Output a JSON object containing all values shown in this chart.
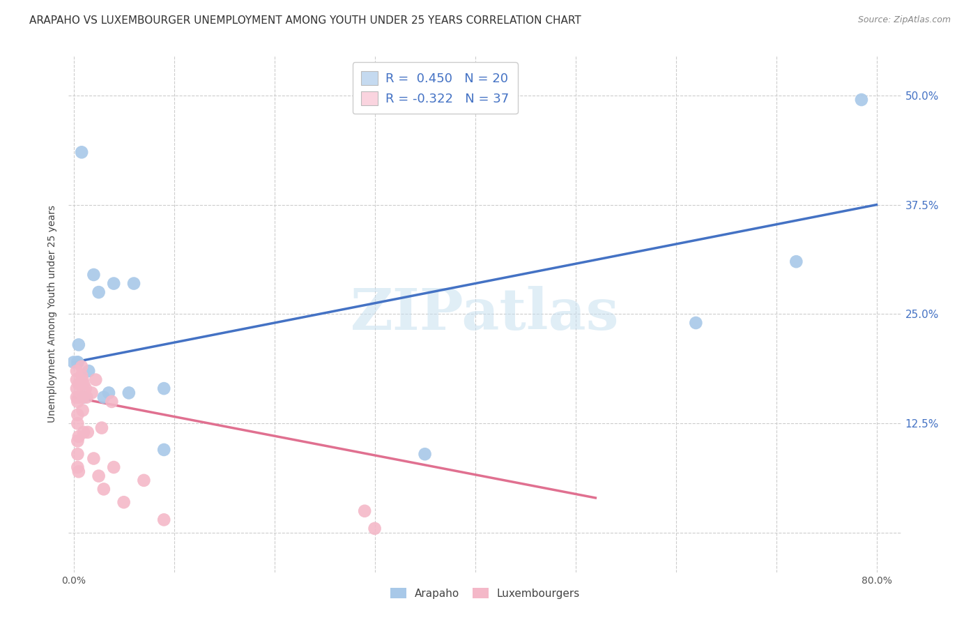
{
  "title": "ARAPAHO VS LUXEMBOURGER UNEMPLOYMENT AMONG YOUTH UNDER 25 YEARS CORRELATION CHART",
  "source": "Source: ZipAtlas.com",
  "ylabel": "Unemployment Among Youth under 25 years",
  "xlim": [
    -0.005,
    0.825
  ],
  "ylim": [
    -0.045,
    0.545
  ],
  "xticks": [
    0.0,
    0.1,
    0.2,
    0.3,
    0.4,
    0.5,
    0.6,
    0.7,
    0.8
  ],
  "xticklabels": [
    "0.0%",
    "",
    "",
    "",
    "",
    "",
    "",
    "",
    "80.0%"
  ],
  "yticks": [
    0.0,
    0.125,
    0.25,
    0.375,
    0.5
  ],
  "yticklabels_right": [
    "",
    "12.5%",
    "25.0%",
    "37.5%",
    "50.0%"
  ],
  "watermark": "ZIPatlas",
  "legend_r_blue": "R =  0.450",
  "legend_n_blue": "N = 20",
  "legend_r_pink": "R = -0.322",
  "legend_n_pink": "N = 37",
  "blue_scatter_x": [
    0.008,
    0.0,
    0.02,
    0.025,
    0.04,
    0.06,
    0.005,
    0.004,
    0.01,
    0.015,
    0.03,
    0.035,
    0.055,
    0.09,
    0.09,
    0.35,
    0.62,
    0.72,
    0.785,
    0.004
  ],
  "blue_scatter_y": [
    0.435,
    0.195,
    0.295,
    0.275,
    0.285,
    0.285,
    0.215,
    0.195,
    0.155,
    0.185,
    0.155,
    0.16,
    0.16,
    0.095,
    0.165,
    0.09,
    0.24,
    0.31,
    0.495,
    0.195
  ],
  "pink_scatter_x": [
    0.003,
    0.003,
    0.003,
    0.003,
    0.004,
    0.004,
    0.004,
    0.004,
    0.004,
    0.004,
    0.005,
    0.005,
    0.005,
    0.005,
    0.008,
    0.008,
    0.009,
    0.009,
    0.009,
    0.01,
    0.01,
    0.012,
    0.013,
    0.014,
    0.018,
    0.02,
    0.022,
    0.025,
    0.028,
    0.03,
    0.038,
    0.04,
    0.05,
    0.07,
    0.09,
    0.29,
    0.3
  ],
  "pink_scatter_y": [
    0.185,
    0.175,
    0.165,
    0.155,
    0.15,
    0.135,
    0.125,
    0.105,
    0.09,
    0.075,
    0.17,
    0.155,
    0.11,
    0.07,
    0.19,
    0.18,
    0.175,
    0.155,
    0.14,
    0.17,
    0.115,
    0.165,
    0.155,
    0.115,
    0.16,
    0.085,
    0.175,
    0.065,
    0.12,
    0.05,
    0.15,
    0.075,
    0.035,
    0.06,
    0.015,
    0.025,
    0.005
  ],
  "blue_line_x": [
    0.0,
    0.8
  ],
  "blue_line_y": [
    0.195,
    0.375
  ],
  "pink_line_x": [
    0.0,
    0.52
  ],
  "pink_line_y": [
    0.155,
    0.04
  ],
  "blue_color": "#a8c8e8",
  "pink_color": "#f4b8c8",
  "blue_line_color": "#4472c4",
  "pink_line_color": "#e07090",
  "legend_blue_fill": "#c5daf0",
  "legend_pink_fill": "#fad4df",
  "background_color": "#ffffff",
  "grid_color": "#cccccc",
  "title_fontsize": 11,
  "axis_label_fontsize": 10,
  "tick_fontsize": 10,
  "legend_fontsize": 13
}
